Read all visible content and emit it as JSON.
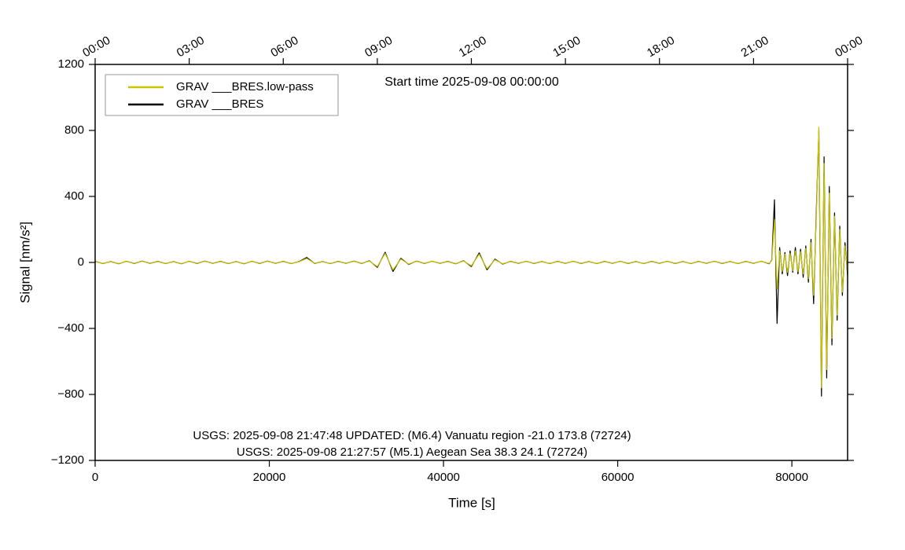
{
  "chart_data": {
    "type": "line",
    "title": "Start time 2025-09-08 00:00:00",
    "xlabel": "Time [s]",
    "ylabel": "Signal [nm/s²]",
    "annotations": [
      "USGS: 2025-09-08 21:47:48 UPDATED: (M6.4) Vanuatu region -21.0 173.8 (72724)",
      "USGS: 2025-09-08 21:27:57 (M5.1) Aegean Sea 38.3 24.1 (72724)"
    ],
    "legend": "upper left",
    "xlim": [
      0,
      86400
    ],
    "ylim": [
      -1200,
      1200
    ],
    "xticks": [
      0,
      20000,
      40000,
      60000,
      80000
    ],
    "yticks": [
      {
        "value": -1200,
        "label": "−1200"
      },
      {
        "value": -800,
        "label": "−800"
      },
      {
        "value": -400,
        "label": "−400"
      },
      0,
      400,
      800,
      1200
    ],
    "x2ticks": [
      {
        "value": 0,
        "label": "00:00"
      },
      {
        "value": 10800,
        "label": "03:00"
      },
      {
        "value": 21600,
        "label": "06:00"
      },
      {
        "value": 32400,
        "label": "09:00"
      },
      {
        "value": 43200,
        "label": "12:00"
      },
      {
        "value": 54000,
        "label": "15:00"
      },
      {
        "value": 64800,
        "label": "18:00"
      },
      {
        "value": 75600,
        "label": "21:00"
      },
      {
        "value": 86400,
        "label": "00:00"
      }
    ],
    "x": [
      0,
      900,
      1800,
      2700,
      3600,
      4500,
      5400,
      6300,
      7200,
      8100,
      9000,
      9900,
      10800,
      11700,
      12600,
      13500,
      14400,
      15300,
      16200,
      17100,
      18000,
      18900,
      19800,
      20700,
      21600,
      22500,
      23400,
      24300,
      25200,
      26100,
      27000,
      27900,
      28800,
      29700,
      30600,
      31500,
      32400,
      33300,
      34200,
      35100,
      36000,
      36900,
      37800,
      38700,
      39600,
      40500,
      41400,
      42300,
      43200,
      44100,
      45000,
      45900,
      46800,
      47700,
      48600,
      49500,
      50400,
      51300,
      52200,
      53100,
      54000,
      54900,
      55800,
      56700,
      57600,
      58500,
      59400,
      60300,
      61200,
      62100,
      63000,
      63900,
      64800,
      65700,
      66600,
      67500,
      68400,
      69300,
      70200,
      71100,
      72000,
      72900,
      73800,
      74700,
      75600,
      76500,
      77400,
      77700,
      78000,
      78300,
      78600,
      78900,
      79200,
      79500,
      79800,
      80100,
      80400,
      80700,
      81000,
      81300,
      81600,
      81900,
      82200,
      82500,
      82800,
      83100,
      83400,
      83700,
      84000,
      84300,
      84600,
      84900,
      85200,
      85500,
      85800,
      86100,
      86400
    ],
    "series": [
      {
        "name": "GRAV ___BRES.low-pass",
        "color": "#c8c400",
        "values": [
          5,
          -6,
          4,
          -7,
          6,
          -5,
          7,
          -4,
          5,
          -6,
          4,
          -7,
          6,
          -5,
          7,
          -4,
          5,
          -6,
          4,
          -7,
          6,
          -5,
          7,
          -4,
          5,
          -6,
          4,
          24,
          -5,
          4,
          -6,
          5,
          -4,
          7,
          -5,
          8,
          -25,
          55,
          -45,
          20,
          -10,
          7,
          -5,
          6,
          -4,
          5,
          -7,
          8,
          -20,
          50,
          -38,
          16,
          -8,
          5,
          -4,
          6,
          -5,
          4,
          -6,
          5,
          -4,
          6,
          -5,
          4,
          -6,
          5,
          -4,
          6,
          -5,
          4,
          -6,
          5,
          -4,
          6,
          -5,
          4,
          -6,
          5,
          -4,
          6,
          -5,
          4,
          -6,
          5,
          -4,
          6,
          -6,
          12,
          260,
          -160,
          70,
          -55,
          50,
          -60,
          55,
          -50,
          70,
          -55,
          65,
          -70,
          85,
          -100,
          120,
          -200,
          260,
          820,
          -760,
          600,
          -650,
          420,
          -460,
          280,
          -320,
          200,
          -180,
          100,
          -60
        ]
      },
      {
        "name": "GRAV ___BRES",
        "color": "#000000",
        "values": [
          6,
          -7,
          5,
          -8,
          7,
          -6,
          8,
          -5,
          6,
          -7,
          5,
          -8,
          7,
          -6,
          8,
          -5,
          6,
          -7,
          5,
          -8,
          7,
          -6,
          8,
          -5,
          6,
          -7,
          5,
          30,
          -6,
          5,
          -7,
          6,
          -5,
          8,
          -6,
          10,
          -30,
          62,
          -55,
          25,
          -12,
          8,
          -6,
          7,
          -5,
          6,
          -8,
          10,
          -25,
          58,
          -45,
          20,
          -10,
          6,
          -5,
          7,
          -6,
          5,
          -7,
          6,
          -5,
          7,
          -6,
          5,
          -7,
          6,
          -5,
          7,
          -6,
          5,
          -7,
          6,
          -5,
          7,
          -6,
          5,
          -7,
          6,
          -5,
          7,
          -6,
          5,
          -7,
          6,
          -5,
          7,
          -8,
          15,
          380,
          -370,
          90,
          -70,
          60,
          -80,
          70,
          -60,
          90,
          -70,
          80,
          -90,
          100,
          -120,
          140,
          -250,
          300,
          800,
          -810,
          640,
          -700,
          460,
          -500,
          300,
          -350,
          220,
          -200,
          120,
          -80
        ]
      }
    ]
  }
}
